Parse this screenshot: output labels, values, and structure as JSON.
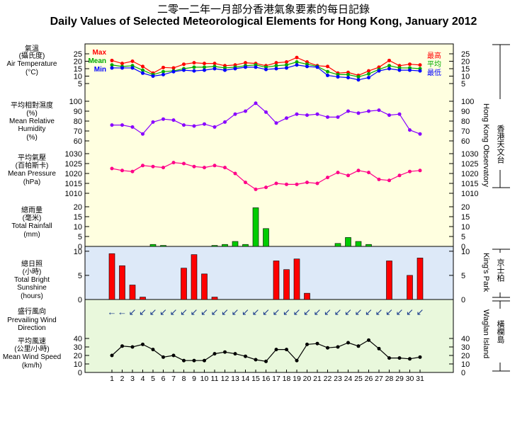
{
  "title_zh": "二零一二年一月部分香港氣象要素的每日記錄",
  "title_en": "Daily Values of Selected Meteorological Elements for Hong Kong, January 2012",
  "colors": {
    "max": "#ff0000",
    "mean": "#00aa00",
    "min": "#0000ff",
    "humidity": "#8800ff",
    "pressure": "#ff0088",
    "rain": "#00cc00",
    "sunshine": "#ff0000",
    "wind": "#000000",
    "arrow": "#1a3b8c",
    "bg_hko": "#ffffe0",
    "bg_kp": "#dde9f8",
    "bg_wi": "#e9f8dc"
  },
  "panels": {
    "temperature": {
      "zh": "氣溫",
      "unit_zh": "(攝氏度)",
      "en": "Air Temperature",
      "unit": "(°C)",
      "legend": [
        "Max",
        "Mean",
        "Min"
      ],
      "legend_zh": [
        "最高",
        "平均",
        "最低"
      ]
    },
    "humidity": {
      "zh": "平均相對濕度",
      "unit_zh": "(%)",
      "en1": "Mean Relative",
      "en2": "Humidity",
      "unit": "(%)"
    },
    "pressure": {
      "zh": "平均氣壓",
      "unit_zh": "(百帕斯卡)",
      "en": "Mean Pressure",
      "unit": "(hPa)"
    },
    "rainfall": {
      "zh": "總雨量",
      "unit_zh": "(毫米)",
      "en": "Total Rainfall",
      "unit": "(mm)"
    },
    "sunshine": {
      "zh": "總日照",
      "unit_zh": "(小時)",
      "en1": "Total Bright",
      "en2": "Sunshine",
      "unit": "(hours)"
    },
    "wind_dir": {
      "zh": "盛行風向",
      "en1": "Prevailing Wind",
      "en2": "Direction"
    },
    "wind_speed": {
      "zh": "平均風速",
      "unit_zh": "(公里/小時)",
      "en": "Mean Wind Speed",
      "unit": "(km/h)"
    }
  },
  "stations": {
    "hko_en": "Hong Kong Observatory",
    "hko_zh": "香港天文台",
    "kp_en": "King's Park",
    "kp_zh": "京士柏",
    "wi_en": "Waglan Island",
    "wi_zh": "橫欄島"
  },
  "chart_data": {
    "type": "multi-panel daily chart",
    "days": [
      1,
      2,
      3,
      4,
      5,
      6,
      7,
      8,
      9,
      10,
      11,
      12,
      13,
      14,
      15,
      16,
      17,
      18,
      19,
      20,
      21,
      22,
      23,
      24,
      25,
      26,
      27,
      28,
      29,
      30,
      31
    ],
    "temperature": {
      "ylim": [
        5,
        25
      ],
      "ticks": [
        5,
        10,
        15,
        20,
        25
      ],
      "max": [
        20.5,
        18.5,
        20.0,
        16.5,
        12.0,
        15.8,
        15.5,
        18.0,
        19.0,
        18.5,
        18.5,
        17.0,
        17.5,
        19.0,
        18.5,
        17.0,
        19.0,
        19.5,
        22.5,
        19.5,
        17.0,
        16.5,
        12.0,
        12.5,
        10.5,
        13.5,
        16.0,
        20.5,
        17.0,
        18.0,
        17.5
      ],
      "mean": [
        17.5,
        16.5,
        17.0,
        14.0,
        11.0,
        13.0,
        13.5,
        15.0,
        16.0,
        16.0,
        16.5,
        15.5,
        16.0,
        17.0,
        17.5,
        16.0,
        17.0,
        17.5,
        19.5,
        18.0,
        16.5,
        13.0,
        11.0,
        11.0,
        9.5,
        11.5,
        14.5,
        17.0,
        15.5,
        15.5,
        15.0
      ],
      "min": [
        15.5,
        15.5,
        15.5,
        12.0,
        10.0,
        11.0,
        13.0,
        14.0,
        13.5,
        14.0,
        15.0,
        14.0,
        15.0,
        16.0,
        16.0,
        14.5,
        15.0,
        15.5,
        17.5,
        16.5,
        16.0,
        10.5,
        9.5,
        9.0,
        7.5,
        9.0,
        13.5,
        15.0,
        14.0,
        14.0,
        13.5
      ]
    },
    "humidity": {
      "ylim": [
        60,
        100
      ],
      "ticks": [
        60,
        70,
        80,
        90,
        100
      ],
      "values": [
        76,
        76,
        74,
        67,
        79,
        82,
        81,
        76,
        75,
        77,
        74,
        79,
        87,
        90,
        98,
        89,
        78,
        83,
        87,
        86,
        87,
        84,
        84,
        90,
        88,
        90,
        91,
        86,
        87,
        71,
        67
      ]
    },
    "pressure": {
      "ylim": [
        1010,
        1030
      ],
      "ticks": [
        1010,
        1015,
        1020,
        1025,
        1030
      ],
      "values": [
        1022.5,
        1021.5,
        1021.0,
        1024.0,
        1023.5,
        1023.0,
        1025.5,
        1025.0,
        1023.5,
        1023.0,
        1024.0,
        1023.0,
        1020.0,
        1015.5,
        1012.0,
        1013.0,
        1015.0,
        1014.5,
        1014.5,
        1015.5,
        1015.0,
        1018.0,
        1020.5,
        1019.0,
        1021.5,
        1020.5,
        1017.0,
        1016.5,
        1019.0,
        1021.0,
        1021.5
      ]
    },
    "rainfall": {
      "ylim": [
        0,
        20
      ],
      "ticks": [
        0,
        5,
        10,
        15,
        20
      ],
      "values": [
        0,
        0,
        0,
        0,
        1,
        0.5,
        0,
        0,
        0,
        0,
        0.5,
        1,
        2.5,
        1,
        19.5,
        9,
        0,
        0,
        0,
        0,
        0,
        0,
        1.5,
        4.5,
        2.5,
        1,
        0,
        0,
        0,
        0,
        0
      ]
    },
    "sunshine": {
      "ylim": [
        0,
        11
      ],
      "ticks": [
        0,
        5,
        10
      ],
      "values": [
        9.5,
        7,
        3,
        0.5,
        0,
        0,
        0,
        6.5,
        9.3,
        5.3,
        0.5,
        0,
        0,
        0,
        0,
        0,
        8,
        6.2,
        8.4,
        1.3,
        0,
        0,
        0,
        0,
        0,
        0,
        0,
        8,
        0,
        5,
        8.6
      ]
    },
    "wind_direction": {
      "arrows": [
        "←",
        "←",
        "↙",
        "↙",
        "↙",
        "↙",
        "↙",
        "↙",
        "↙",
        "↙",
        "↙",
        "↙",
        "↙",
        "↙",
        "↙",
        "↙",
        "↙",
        "↙",
        "↙",
        "↙",
        "↙",
        "↙",
        "↙",
        "↙",
        "↙",
        "↙",
        "↙",
        "↙",
        "↙",
        "↙",
        "↙"
      ]
    },
    "wind_speed": {
      "ylim": [
        0,
        40
      ],
      "ticks": [
        0,
        10,
        20,
        30,
        40
      ],
      "values": [
        20,
        31,
        30,
        33,
        27,
        18,
        20,
        14,
        14,
        14,
        22,
        24,
        22,
        19,
        15,
        13,
        27,
        27,
        14,
        33,
        34,
        29,
        30,
        35,
        31,
        38,
        28,
        17,
        17,
        16,
        18
      ]
    }
  }
}
